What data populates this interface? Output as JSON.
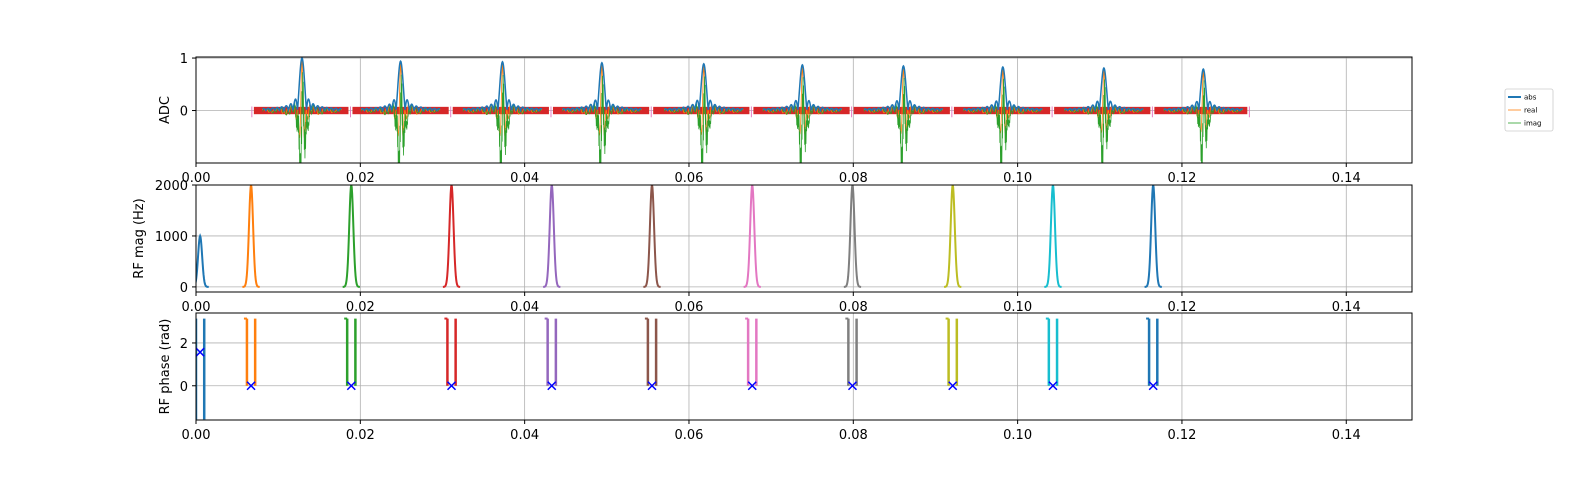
{
  "chart_data": [
    {
      "type": "line",
      "ylabel": "ADC",
      "xlim": [
        0.0,
        0.148
      ],
      "ylim": [
        -1.0,
        1.02
      ],
      "x_ticks": [
        "0.00",
        "0.02",
        "0.04",
        "0.06",
        "0.08",
        "0.10",
        "0.12",
        "0.14"
      ],
      "y_ticks": [
        "1",
        "0"
      ],
      "y_tick_values": [
        1,
        0
      ],
      "grid": true,
      "legend_position": "outside-right",
      "legend": [
        "abs",
        "real",
        "imag"
      ],
      "echo_centers": [
        0.0129,
        0.0249,
        0.0373,
        0.0494,
        0.0618,
        0.0738,
        0.0861,
        0.0982,
        0.1105,
        0.1226
      ],
      "echo_peaks": [
        1.0,
        0.94,
        0.93,
        0.91,
        0.89,
        0.87,
        0.85,
        0.83,
        0.81,
        0.79
      ],
      "adc_window_edges": [
        0.0068,
        0.0188,
        0.031,
        0.0432,
        0.0554,
        0.0676,
        0.0798,
        0.092,
        0.1042,
        0.1164,
        0.1282
      ],
      "series_colors": {
        "abs": "#1f77b4",
        "real": "#ff7f0e",
        "imag": "#2ca02c",
        "samples": "#d62728",
        "separators": "#e377c2"
      }
    },
    {
      "type": "line",
      "ylabel": "RF mag (Hz)",
      "xlim": [
        0.0,
        0.148
      ],
      "ylim": [
        -100,
        2000
      ],
      "x_ticks": [
        "0.00",
        "0.02",
        "0.04",
        "0.06",
        "0.08",
        "0.10",
        "0.12",
        "0.14"
      ],
      "y_ticks": [
        "2000",
        "1000",
        "0"
      ],
      "y_tick_values": [
        2000,
        1000,
        0
      ],
      "grid": true,
      "pulses": [
        {
          "t": 0.0005,
          "peak": 1000,
          "color": "#1f77b4"
        },
        {
          "t": 0.0067,
          "peak": 2000,
          "color": "#ff7f0e"
        },
        {
          "t": 0.0189,
          "peak": 2000,
          "color": "#2ca02c"
        },
        {
          "t": 0.0311,
          "peak": 2000,
          "color": "#d62728"
        },
        {
          "t": 0.0433,
          "peak": 2000,
          "color": "#9467bd"
        },
        {
          "t": 0.0555,
          "peak": 2000,
          "color": "#8c564b"
        },
        {
          "t": 0.0677,
          "peak": 2000,
          "color": "#e377c2"
        },
        {
          "t": 0.0799,
          "peak": 2000,
          "color": "#7f7f7f"
        },
        {
          "t": 0.0921,
          "peak": 2000,
          "color": "#bcbd22"
        },
        {
          "t": 0.1043,
          "peak": 2000,
          "color": "#17becf"
        },
        {
          "t": 0.1165,
          "peak": 2000,
          "color": "#1f77b4"
        }
      ]
    },
    {
      "type": "line",
      "ylabel": "RF phase (rad)",
      "xlim": [
        0.0,
        0.148
      ],
      "ylim": [
        -1.6,
        3.4
      ],
      "x_ticks": [
        "0.00",
        "0.02",
        "0.04",
        "0.06",
        "0.08",
        "0.10",
        "0.12",
        "0.14"
      ],
      "y_ticks": [
        "2",
        "0"
      ],
      "y_tick_values": [
        2,
        0
      ],
      "grid": true,
      "pulses": [
        {
          "t": 0.0005,
          "low": -1.57,
          "high": 3.14,
          "marker": 1.57,
          "color": "#1f77b4"
        },
        {
          "t": 0.0067,
          "low": 0.0,
          "high": 3.14,
          "marker": 0.0,
          "color": "#ff7f0e"
        },
        {
          "t": 0.0189,
          "low": 0.0,
          "high": 3.14,
          "marker": 0.0,
          "color": "#2ca02c"
        },
        {
          "t": 0.0311,
          "low": 0.0,
          "high": 3.14,
          "marker": 0.0,
          "color": "#d62728"
        },
        {
          "t": 0.0433,
          "low": 0.0,
          "high": 3.14,
          "marker": 0.0,
          "color": "#9467bd"
        },
        {
          "t": 0.0555,
          "low": 0.0,
          "high": 3.14,
          "marker": 0.0,
          "color": "#8c564b"
        },
        {
          "t": 0.0677,
          "low": 0.0,
          "high": 3.14,
          "marker": 0.0,
          "color": "#e377c2"
        },
        {
          "t": 0.0799,
          "low": 0.0,
          "high": 3.14,
          "marker": 0.0,
          "color": "#7f7f7f"
        },
        {
          "t": 0.0921,
          "low": 0.0,
          "high": 3.14,
          "marker": 0.0,
          "color": "#bcbd22"
        },
        {
          "t": 0.1043,
          "low": 0.0,
          "high": 3.14,
          "marker": 0.0,
          "color": "#17becf"
        },
        {
          "t": 0.1165,
          "low": 0.0,
          "high": 3.14,
          "marker": 0.0,
          "color": "#1f77b4"
        }
      ],
      "marker_color": "#0000ff"
    }
  ]
}
